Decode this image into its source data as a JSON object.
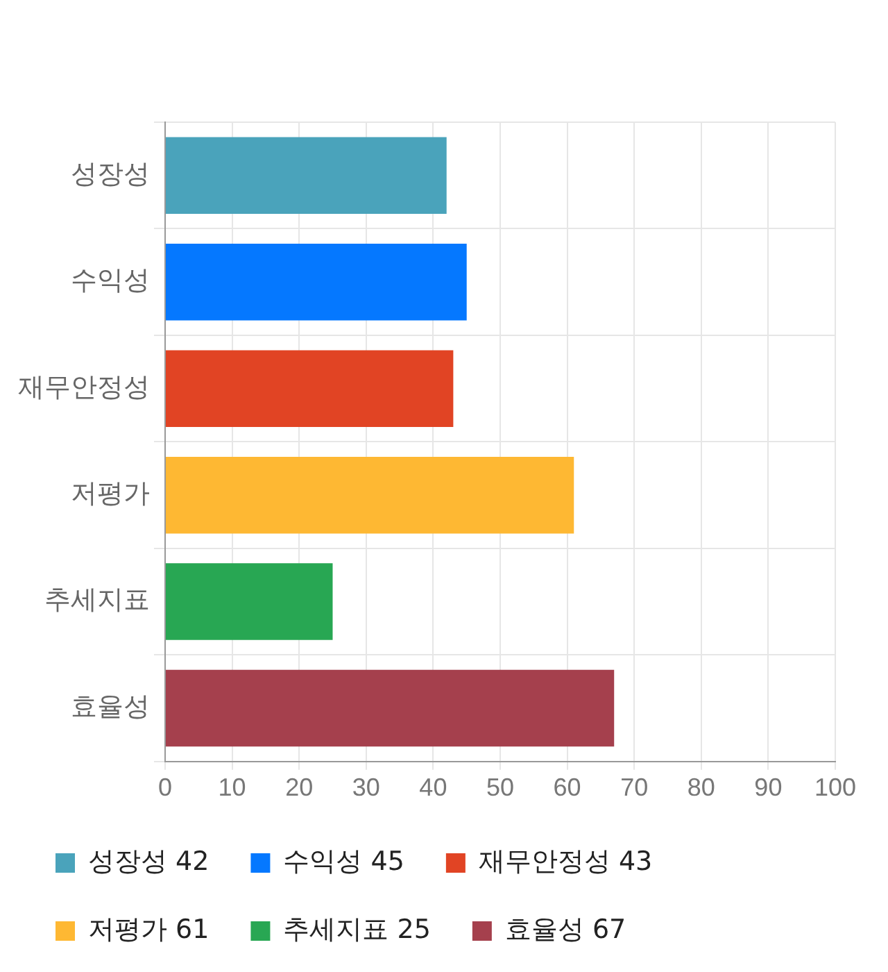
{
  "chart_data": {
    "type": "bar",
    "orientation": "horizontal",
    "stacked": true,
    "categories": [
      "성장성",
      "수익성",
      "재무안정성",
      "저평가",
      "추세지표",
      "효율성"
    ],
    "series": [
      {
        "name": "성장성 42",
        "color": "#4aa3bb",
        "values": [
          42,
          null,
          null,
          null,
          null,
          null
        ]
      },
      {
        "name": "수익성 45",
        "color": "#0578ff",
        "values": [
          null,
          45,
          null,
          null,
          null,
          null
        ]
      },
      {
        "name": "재무안정성 43",
        "color": "#e14424",
        "values": [
          null,
          null,
          43,
          null,
          null,
          null
        ]
      },
      {
        "name": "저평가 61",
        "color": "#feb833",
        "values": [
          null,
          null,
          null,
          61,
          null,
          null
        ]
      },
      {
        "name": "추세지표 25",
        "color": "#28a753",
        "values": [
          null,
          null,
          null,
          null,
          25,
          null
        ]
      },
      {
        "name": "효율성 67",
        "color": "#a5404d",
        "values": [
          null,
          null,
          null,
          null,
          null,
          67
        ]
      }
    ],
    "xlim": [
      0,
      100
    ],
    "xticks": [
      0,
      10,
      20,
      30,
      40,
      50,
      60,
      70,
      80,
      90,
      100
    ],
    "grid": true,
    "legend": "bottom"
  }
}
